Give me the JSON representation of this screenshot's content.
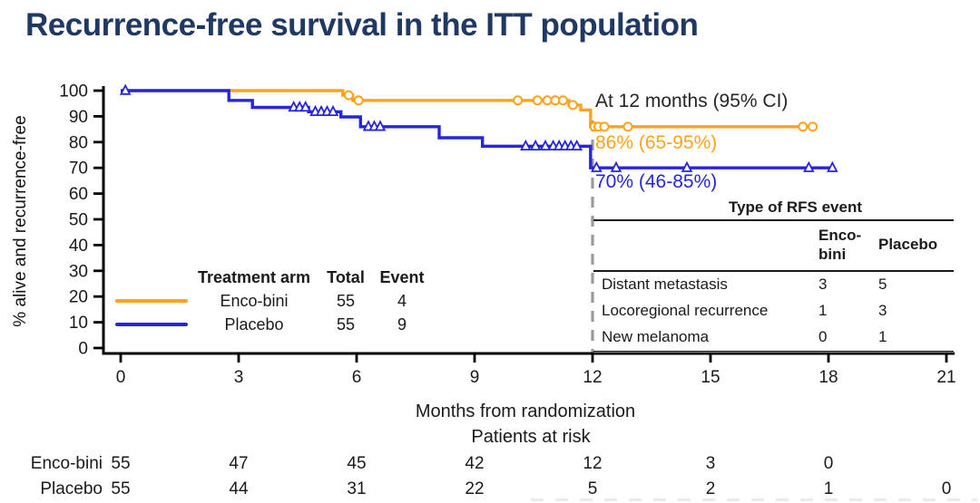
{
  "title": "Recurrence-free survival in the ITT population",
  "colors": {
    "title_navy": "#1F3864",
    "encobini_orange": "#FFA31A",
    "placebo_blue": "#2525DF",
    "annotation_dark": "#262626",
    "axis_black": "#000000",
    "dashed_gray": "#9A9A9A"
  },
  "annotation": {
    "heading": "At 12 months (95% CI)",
    "encobini_ci": "86% (65-95%)",
    "placebo_ci": "70% (46-85%)"
  },
  "legend": {
    "headers": [
      "Treatment arm",
      "Total",
      "Event"
    ],
    "rows": [
      {
        "arm": "Enco-bini",
        "total": "55",
        "event": "4",
        "color": "#FFA31A"
      },
      {
        "arm": "Placebo",
        "total": "55",
        "event": "9",
        "color": "#2525DF"
      }
    ]
  },
  "rfs_table": {
    "title": "Type of RFS event",
    "col_headers": [
      "Enco-bini",
      "Placebo"
    ],
    "rows": [
      {
        "label": "Distant metastasis",
        "encobini": "3",
        "placebo": "5"
      },
      {
        "label": "Locoregional recurrence",
        "encobini": "1",
        "placebo": "3"
      },
      {
        "label": "New melanoma",
        "encobini": "0",
        "placebo": "1"
      }
    ]
  },
  "xaxis_label": "Months from randomization",
  "risk_table": {
    "heading": "Patients at risk",
    "rows": [
      {
        "label": "Enco-bini",
        "values": [
          "55",
          "47",
          "45",
          "42",
          "12",
          "3",
          "0"
        ]
      },
      {
        "label": "Placebo",
        "values": [
          "55",
          "44",
          "31",
          "22",
          "5",
          "2",
          "1",
          "0"
        ]
      }
    ]
  },
  "chart_data": {
    "type": "line",
    "subtype": "kaplan-meier-step",
    "title": "Recurrence-free survival in the ITT population",
    "xlabel": "Months from randomization",
    "ylabel": "% alive and recurrence-free",
    "xlim": [
      0,
      21
    ],
    "xticks": [
      0,
      3,
      6,
      9,
      12,
      15,
      18,
      21
    ],
    "ylim": [
      0,
      100
    ],
    "yticks": [
      0,
      10,
      20,
      30,
      40,
      50,
      60,
      70,
      80,
      90,
      100
    ],
    "grid": false,
    "reference_line_x": 12,
    "series": [
      {
        "name": "Enco-bini",
        "color": "#FFA31A",
        "marker": "circle",
        "total": 55,
        "events": 4,
        "estimate_at_12_months": "86% (65-95%)",
        "steps": [
          [
            0,
            100
          ],
          [
            5.65,
            100
          ],
          [
            5.65,
            98.2
          ],
          [
            5.9,
            98.2
          ],
          [
            5.9,
            96.2
          ],
          [
            11.4,
            96.2
          ],
          [
            11.4,
            94.4
          ],
          [
            11.7,
            94.4
          ],
          [
            11.7,
            92.5
          ],
          [
            11.95,
            92.5
          ],
          [
            11.95,
            86
          ],
          [
            17.6,
            86
          ]
        ],
        "censor_marks": [
          [
            5.8,
            98.2
          ],
          [
            6.05,
            96.2
          ],
          [
            10.1,
            96.2
          ],
          [
            10.6,
            96.2
          ],
          [
            10.85,
            96.2
          ],
          [
            11.05,
            96.2
          ],
          [
            11.25,
            96.2
          ],
          [
            11.5,
            94.4
          ],
          [
            12.05,
            86
          ],
          [
            12.15,
            86
          ],
          [
            12.3,
            86
          ],
          [
            12.9,
            86
          ],
          [
            17.35,
            86
          ],
          [
            17.6,
            86
          ]
        ]
      },
      {
        "name": "Placebo",
        "color": "#2525DF",
        "marker": "triangle",
        "total": 55,
        "events": 9,
        "estimate_at_12_months": "70% (46-85%)",
        "steps": [
          [
            0,
            100
          ],
          [
            2.75,
            100
          ],
          [
            2.75,
            96.2
          ],
          [
            3.35,
            96.2
          ],
          [
            3.35,
            93.5
          ],
          [
            4.78,
            93.5
          ],
          [
            4.78,
            91.8
          ],
          [
            5.6,
            91.8
          ],
          [
            5.6,
            89.8
          ],
          [
            6.1,
            89.8
          ],
          [
            6.1,
            86
          ],
          [
            8.1,
            86
          ],
          [
            8.1,
            81.7
          ],
          [
            9.2,
            81.7
          ],
          [
            9.2,
            78.4
          ],
          [
            11.95,
            78.4
          ],
          [
            11.95,
            70
          ],
          [
            18.1,
            70
          ]
        ],
        "censor_marks": [
          [
            0.12,
            100
          ],
          [
            4.4,
            93.5
          ],
          [
            4.55,
            93.5
          ],
          [
            4.7,
            93.5
          ],
          [
            4.95,
            91.8
          ],
          [
            5.1,
            91.8
          ],
          [
            5.25,
            91.8
          ],
          [
            5.4,
            91.8
          ],
          [
            6.3,
            86
          ],
          [
            6.45,
            86
          ],
          [
            6.6,
            86
          ],
          [
            10.3,
            78.4
          ],
          [
            10.55,
            78.4
          ],
          [
            10.8,
            78.4
          ],
          [
            11.0,
            78.4
          ],
          [
            11.15,
            78.4
          ],
          [
            11.3,
            78.4
          ],
          [
            11.45,
            78.4
          ],
          [
            11.6,
            78.4
          ],
          [
            12.1,
            70
          ],
          [
            12.6,
            70
          ],
          [
            14.4,
            70
          ],
          [
            17.5,
            70
          ],
          [
            18.1,
            70
          ]
        ]
      }
    ],
    "patients_at_risk": {
      "Enco-bini": [
        55,
        47,
        45,
        42,
        12,
        3,
        0
      ],
      "Placebo": [
        55,
        44,
        31,
        22,
        5,
        2,
        1,
        0
      ]
    }
  }
}
